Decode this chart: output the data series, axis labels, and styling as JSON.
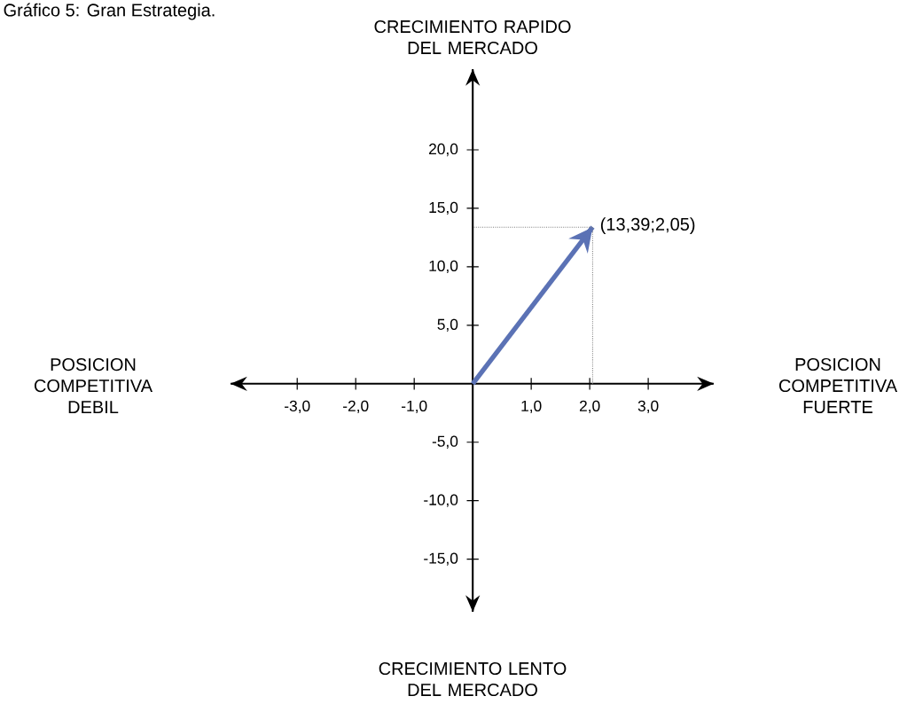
{
  "chart_data": {
    "type": "line",
    "title": "Gráfico 5: Gran Estrategia.",
    "ylabel": "CRECIMIENTO RAPIDO DEL MERCADO",
    "annotations": [
      "POSICION COMPETITIVA DEBIL",
      "POSICION COMPETITIVA FUERTE",
      "CRECIMIENTO LENTO DEL MERCADO",
      {
        "text": "(13,39;2,05)",
        "x": 2.05,
        "y": 13.39
      }
    ],
    "x": [
      0,
      2.05
    ],
    "series": [
      {
        "color": "#5b72b5",
        "values": [
          0,
          13.39
        ]
      }
    ],
    "xlim": [
      -4.14,
      4.12
    ],
    "ylim": [
      -19.5,
      26.9
    ],
    "xticks": [
      {
        "value": -3,
        "label": "-3,0"
      },
      {
        "value": -2,
        "label": "-2,0"
      },
      {
        "value": -1,
        "label": "-1,0"
      },
      {
        "value": 1,
        "label": "1,0"
      },
      {
        "value": 2,
        "label": "2,0"
      },
      {
        "value": 3,
        "label": "3,0"
      }
    ],
    "yticks": [
      {
        "value": -15,
        "label": "-15,0"
      },
      {
        "value": -10,
        "label": "-10,0"
      },
      {
        "value": -5,
        "label": "-5,0"
      },
      {
        "value": 5,
        "label": "5,0"
      },
      {
        "value": 10,
        "label": "10,0"
      },
      {
        "value": 15,
        "label": "15,0"
      },
      {
        "value": 20,
        "label": "20,0"
      }
    ]
  }
}
